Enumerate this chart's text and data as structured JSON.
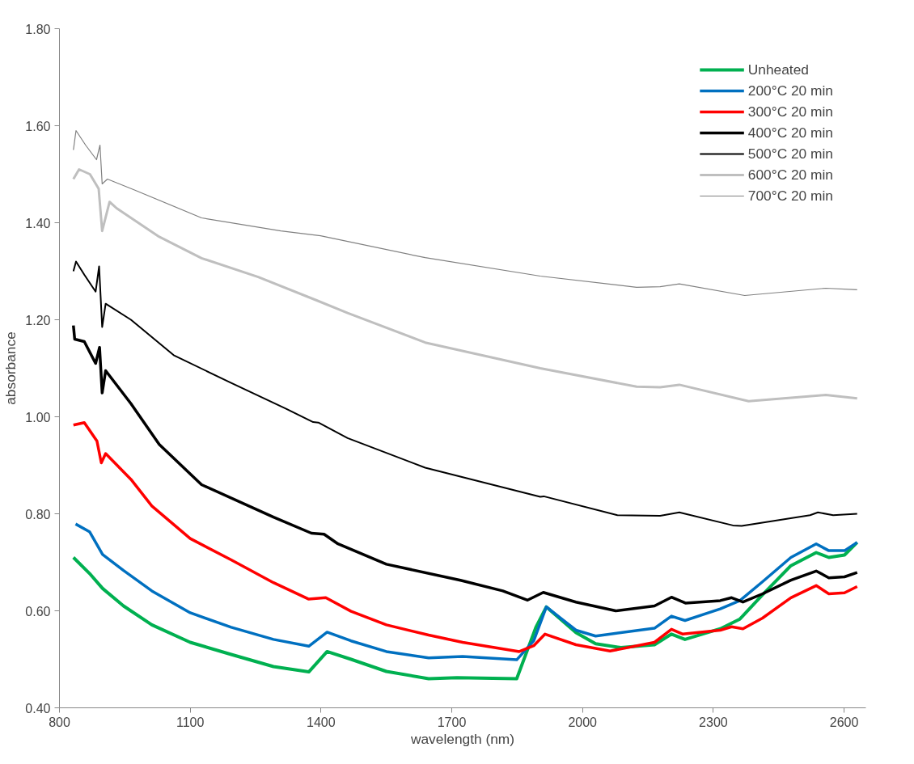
{
  "chart_data": {
    "type": "line",
    "xlabel": "wavelength (nm)",
    "ylabel": "absorbance",
    "xlim": [
      800,
      2650
    ],
    "xticks": [
      800,
      1100,
      1400,
      1700,
      2000,
      2300,
      2600
    ],
    "ylim": [
      0.4,
      1.8
    ],
    "yticks": [
      {
        "value": 0.4,
        "label": "0.40"
      },
      {
        "value": 0.6,
        "label": "0.60"
      },
      {
        "value": 0.8,
        "label": "0.80"
      },
      {
        "value": 1.0,
        "label": "1.00"
      },
      {
        "value": 1.2,
        "label": "1.20"
      },
      {
        "value": 1.4,
        "label": "1.40"
      },
      {
        "value": 1.6,
        "label": "1.60"
      },
      {
        "value": 1.8,
        "label": "1.80"
      }
    ],
    "grid": false,
    "legend": "top right",
    "marker": "none",
    "line_style": "solid",
    "series": [
      {
        "name": "Unheated",
        "color": "#00b050",
        "x": [
          832,
          869,
          899,
          947,
          1012,
          1100,
          1194,
          1291,
          1372,
          1414,
          1469,
          1550,
          1647,
          1712,
          1849,
          1893,
          1917,
          1985,
          2030,
          2088,
          2165,
          2204,
          2235,
          2316,
          2361,
          2413,
          2478,
          2536,
          2565,
          2601,
          2630
        ],
        "values": [
          0.71,
          0.677,
          0.646,
          0.61,
          0.571,
          0.535,
          0.51,
          0.485,
          0.474,
          0.516,
          0.5,
          0.475,
          0.46,
          0.462,
          0.46,
          0.566,
          0.608,
          0.555,
          0.532,
          0.524,
          0.53,
          0.552,
          0.541,
          0.563,
          0.583,
          0.633,
          0.693,
          0.72,
          0.71,
          0.715,
          0.741
        ]
      },
      {
        "name": "200°C 20 min",
        "color": "#0070c0",
        "x": [
          837,
          869,
          899,
          947,
          1012,
          1100,
          1194,
          1291,
          1372,
          1414,
          1469,
          1550,
          1647,
          1725,
          1849,
          1888,
          1917,
          1985,
          2030,
          2165,
          2204,
          2235,
          2316,
          2361,
          2413,
          2478,
          2536,
          2565,
          2601,
          2630
        ],
        "values": [
          0.779,
          0.763,
          0.716,
          0.683,
          0.641,
          0.596,
          0.566,
          0.541,
          0.527,
          0.556,
          0.538,
          0.516,
          0.503,
          0.506,
          0.499,
          0.538,
          0.608,
          0.56,
          0.548,
          0.564,
          0.589,
          0.58,
          0.604,
          0.621,
          0.66,
          0.71,
          0.738,
          0.724,
          0.724,
          0.741
        ]
      },
      {
        "name": "300°C 20 min",
        "color": "#ff0000",
        "x": [
          832,
          857,
          886,
          896,
          906,
          964,
          1012,
          1100,
          1194,
          1291,
          1372,
          1411,
          1469,
          1550,
          1647,
          1725,
          1855,
          1888,
          1914,
          1985,
          2063,
          2165,
          2204,
          2230,
          2316,
          2342,
          2368,
          2413,
          2478,
          2536,
          2565,
          2601,
          2630
        ],
        "values": [
          0.983,
          0.988,
          0.95,
          0.905,
          0.924,
          0.871,
          0.816,
          0.749,
          0.705,
          0.658,
          0.624,
          0.627,
          0.599,
          0.571,
          0.55,
          0.535,
          0.516,
          0.528,
          0.552,
          0.53,
          0.517,
          0.535,
          0.562,
          0.552,
          0.56,
          0.567,
          0.563,
          0.585,
          0.627,
          0.652,
          0.635,
          0.637,
          0.65
        ]
      },
      {
        "name": "400°C 20 min",
        "color": "#000000",
        "x": [
          832,
          835,
          857,
          883,
          892,
          898,
          906,
          964,
          1029,
          1126,
          1291,
          1378,
          1407,
          1439,
          1550,
          1720,
          1817,
          1874,
          1910,
          1985,
          2076,
          2165,
          2204,
          2236,
          2316,
          2342,
          2368,
          2413,
          2478,
          2536,
          2565,
          2601,
          2630
        ],
        "values": [
          1.188,
          1.16,
          1.155,
          1.11,
          1.143,
          1.049,
          1.095,
          1.027,
          0.943,
          0.86,
          0.793,
          0.76,
          0.758,
          0.738,
          0.696,
          0.663,
          0.641,
          0.622,
          0.638,
          0.618,
          0.6,
          0.61,
          0.628,
          0.616,
          0.621,
          0.627,
          0.618,
          0.635,
          0.663,
          0.682,
          0.668,
          0.67,
          0.679
        ]
      },
      {
        "name": "500°C 20 min",
        "color": "#000000",
        "x": [
          832,
          838,
          857,
          883,
          891,
          898,
          906,
          964,
          1062,
          1191,
          1321,
          1382,
          1394,
          1461,
          1639,
          1903,
          1911,
          2080,
          2178,
          2222,
          2345,
          2365,
          2522,
          2540,
          2575,
          2630
        ],
        "values": [
          1.3,
          1.32,
          1.293,
          1.258,
          1.31,
          1.185,
          1.233,
          1.2,
          1.127,
          1.071,
          1.016,
          0.989,
          0.988,
          0.956,
          0.895,
          0.835,
          0.836,
          0.797,
          0.796,
          0.803,
          0.776,
          0.775,
          0.797,
          0.803,
          0.797,
          0.8
        ]
      },
      {
        "name": "600°C 20 min",
        "color": "#bfbfbf",
        "x": [
          832,
          845,
          870,
          890,
          898,
          915,
          931,
          1029,
          1126,
          1256,
          1390,
          1461,
          1639,
          1903,
          2124,
          2178,
          2222,
          2381,
          2558,
          2630
        ],
        "values": [
          1.49,
          1.51,
          1.5,
          1.47,
          1.383,
          1.443,
          1.43,
          1.371,
          1.327,
          1.288,
          1.24,
          1.214,
          1.153,
          1.1,
          1.062,
          1.061,
          1.066,
          1.032,
          1.045,
          1.038
        ]
      },
      {
        "name": "700°C 20 min",
        "color": "#808080",
        "x": [
          832,
          838,
          860,
          885,
          893,
          898,
          910,
          971,
          1126,
          1308,
          1399,
          1639,
          1903,
          2124,
          2178,
          2222,
          2372,
          2558,
          2630
        ],
        "values": [
          1.55,
          1.59,
          1.56,
          1.53,
          1.56,
          1.48,
          1.49,
          1.468,
          1.41,
          1.383,
          1.373,
          1.328,
          1.29,
          1.267,
          1.268,
          1.274,
          1.25,
          1.265,
          1.262
        ]
      }
    ]
  }
}
